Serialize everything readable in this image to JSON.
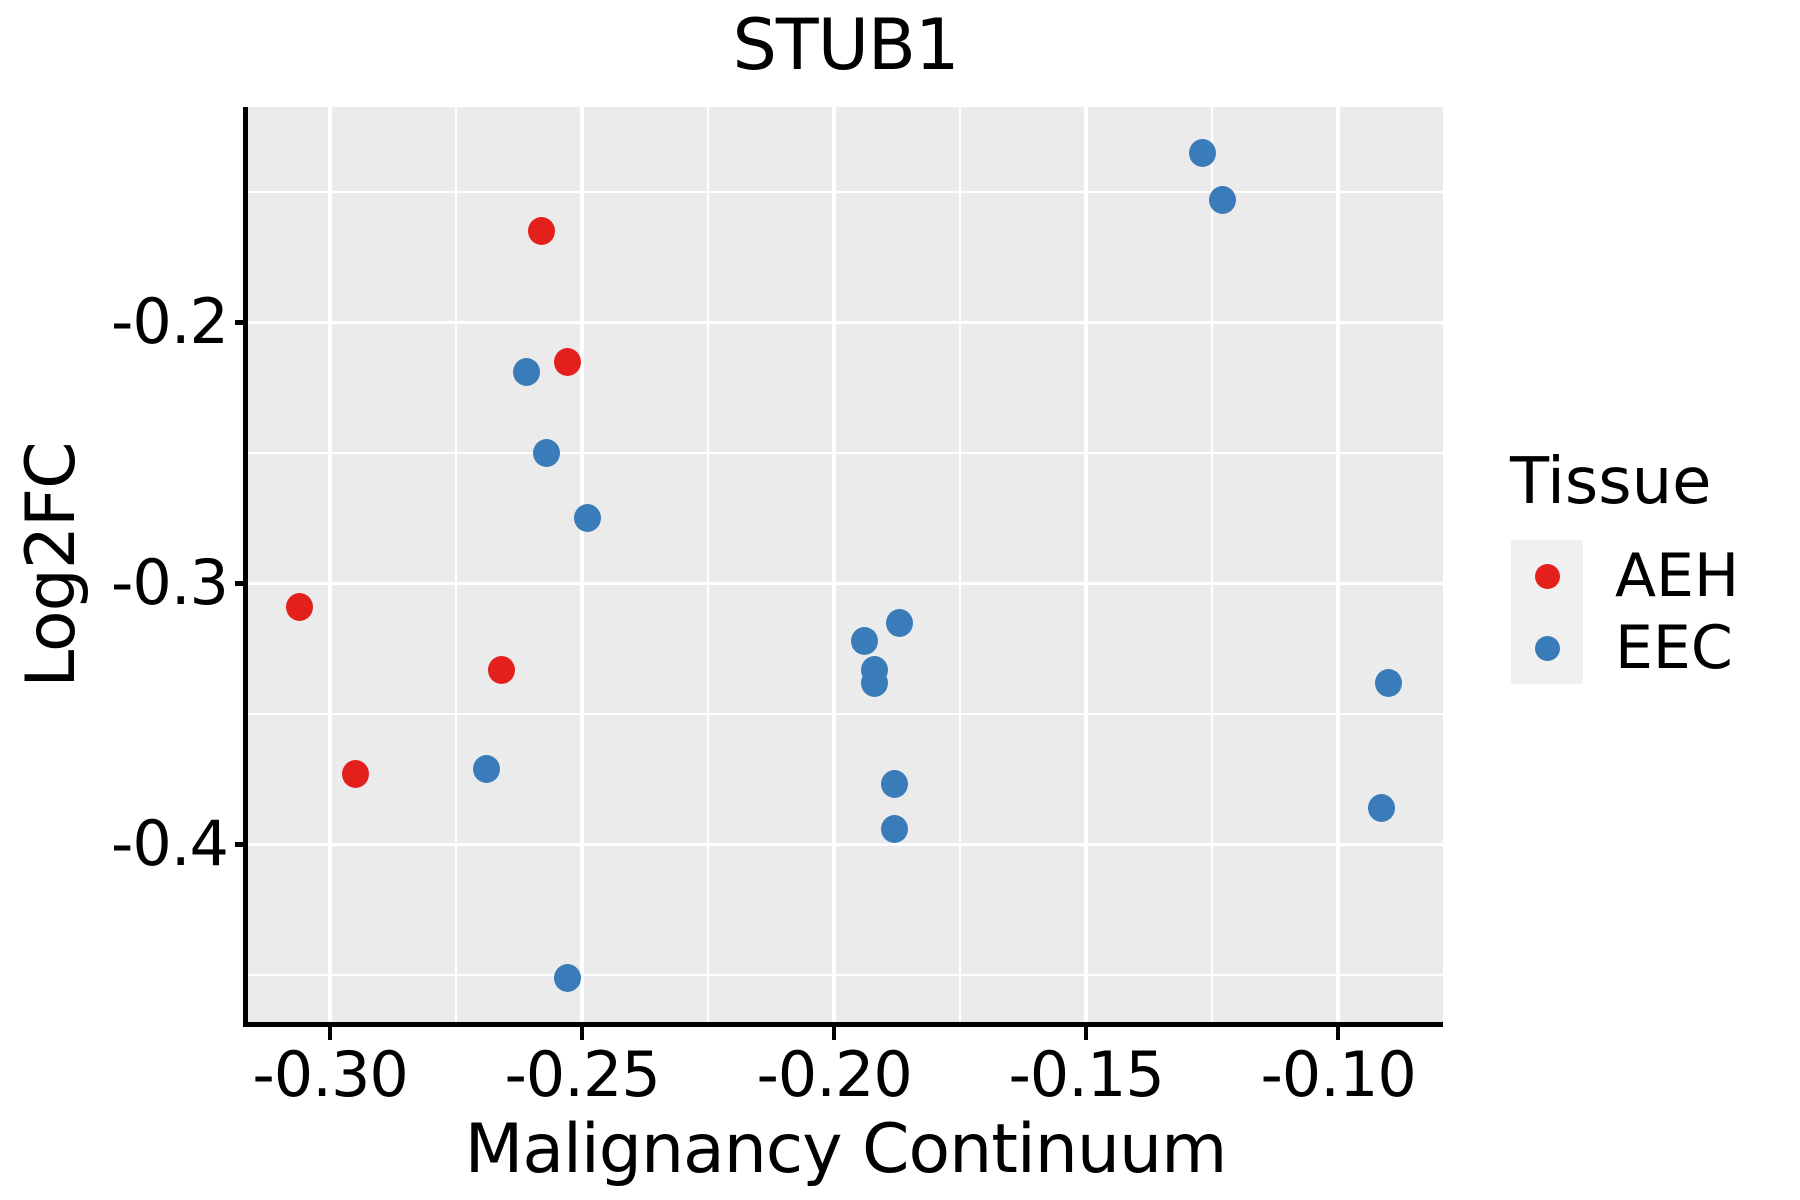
{
  "title": "STUB1",
  "legend": {
    "title": "Tissue",
    "entries": [
      {
        "label": "AEH",
        "color": "#E3201C"
      },
      {
        "label": "EEC",
        "color": "#3A7CB9"
      }
    ]
  },
  "chart_data": {
    "type": "scatter",
    "title": "STUB1",
    "xlabel": "Malignancy Continuum",
    "ylabel": "Log2FC",
    "xlim": [
      -0.3163,
      -0.0792
    ],
    "ylim": [
      -0.468,
      -0.1175
    ],
    "grid": true,
    "legend_position": "right",
    "panel_background": "#EBEBEB",
    "gridline_color": "#FFFFFF",
    "x_ticks": [
      {
        "v": -0.3,
        "t": "-0.30"
      },
      {
        "v": -0.25,
        "t": "-0.25"
      },
      {
        "v": -0.2,
        "t": "-0.20"
      },
      {
        "v": -0.15,
        "t": "-0.15"
      },
      {
        "v": -0.1,
        "t": "-0.10"
      }
    ],
    "y_ticks": [
      {
        "v": -0.2,
        "t": "-0.2"
      },
      {
        "v": -0.3,
        "t": "-0.3"
      },
      {
        "v": -0.4,
        "t": "-0.4"
      }
    ],
    "x_minor_gridlines": [
      -0.275,
      -0.225,
      -0.175,
      -0.125
    ],
    "y_minor_gridlines": [
      -0.15,
      -0.25,
      -0.35,
      -0.45
    ],
    "series": [
      {
        "name": "AEH",
        "color": "#E3201C",
        "points": [
          [
            -0.306,
            -0.309
          ],
          [
            -0.295,
            -0.373
          ],
          [
            -0.266,
            -0.333
          ],
          [
            -0.258,
            -0.165
          ],
          [
            -0.253,
            -0.215
          ]
        ]
      },
      {
        "name": "EEC",
        "color": "#3A7CB9",
        "points": [
          [
            -0.269,
            -0.371
          ],
          [
            -0.261,
            -0.219
          ],
          [
            -0.257,
            -0.25
          ],
          [
            -0.253,
            -0.451
          ],
          [
            -0.249,
            -0.275
          ],
          [
            -0.194,
            -0.322
          ],
          [
            -0.192,
            -0.333
          ],
          [
            -0.192,
            -0.338
          ],
          [
            -0.188,
            -0.377
          ],
          [
            -0.188,
            -0.394
          ],
          [
            -0.187,
            -0.315
          ],
          [
            -0.127,
            -0.135
          ],
          [
            -0.123,
            -0.153
          ],
          [
            -0.0915,
            -0.386
          ],
          [
            -0.09,
            -0.338
          ]
        ]
      }
    ]
  }
}
